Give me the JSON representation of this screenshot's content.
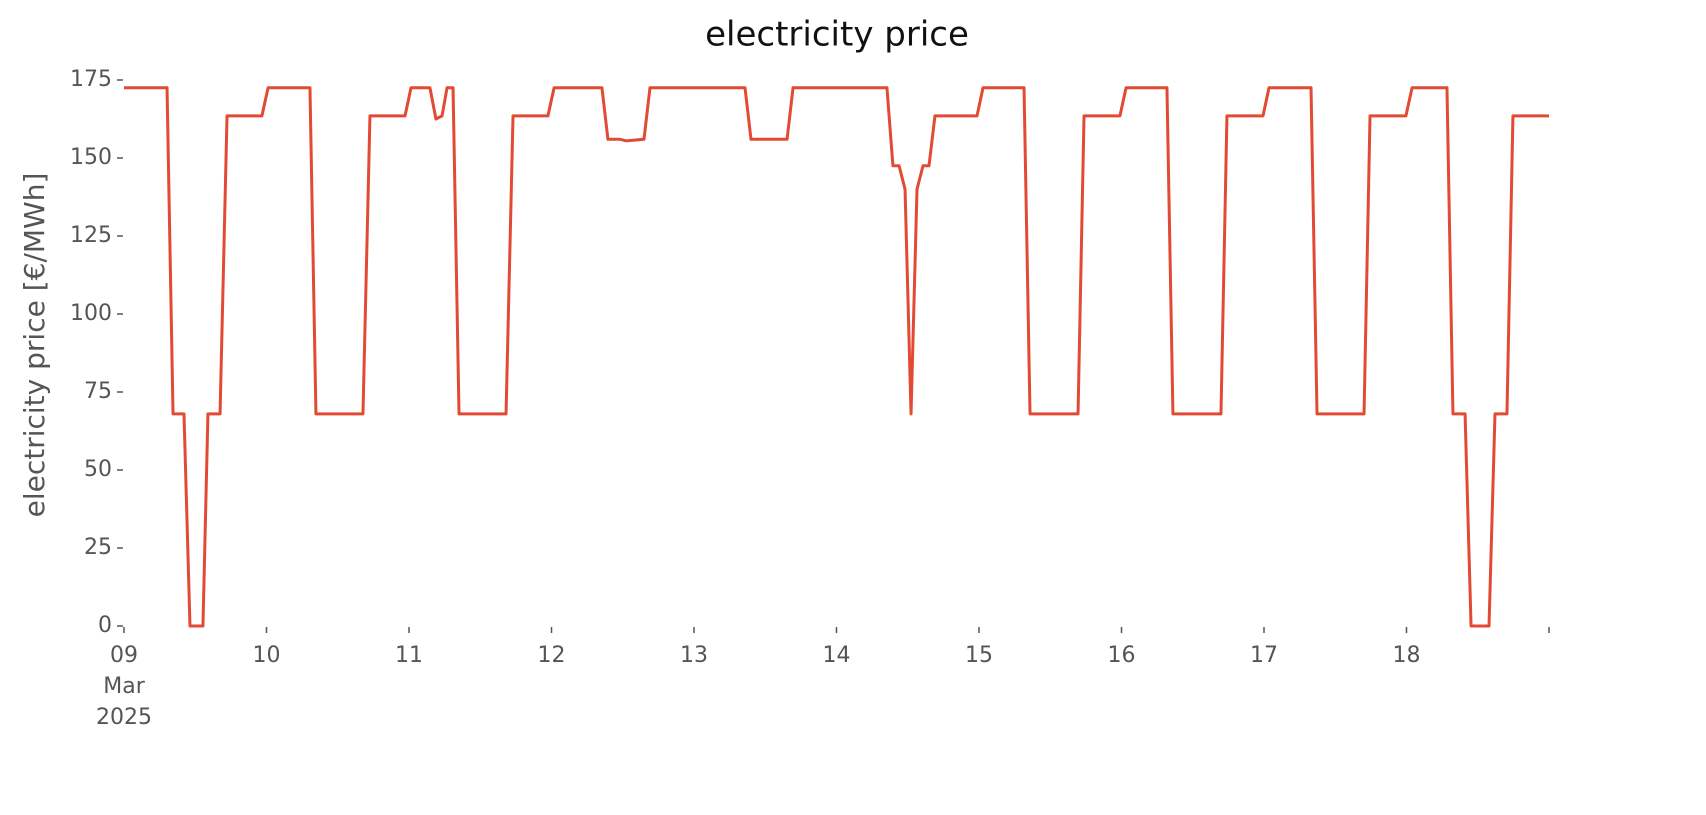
{
  "chart_data": {
    "type": "line",
    "title": "electricity price",
    "ylabel": "electricity price [€/MWh]",
    "x": [
      0,
      0.302,
      0.344,
      0.421,
      0.463,
      0.554,
      0.589,
      0.674,
      0.723,
      0.968,
      1.011,
      1.305,
      1.347,
      1.677,
      1.726,
      1.972,
      2.014,
      2.147,
      2.189,
      2.232,
      2.267,
      2.309,
      2.351,
      2.681,
      2.73,
      2.975,
      3.018,
      3.354,
      3.396,
      3.481,
      3.523,
      3.649,
      3.691,
      4.358,
      4.4,
      4.653,
      4.695,
      5.354,
      5.396,
      5.439,
      5.481,
      5.523,
      5.565,
      5.607,
      5.649,
      5.691,
      5.986,
      6.028,
      6.316,
      6.358,
      6.695,
      6.737,
      6.989,
      7.032,
      7.319,
      7.361,
      7.698,
      7.74,
      7.993,
      8.035,
      8.33,
      8.372,
      8.702,
      8.744,
      8.996,
      9.039,
      9.284,
      9.326,
      9.411,
      9.453,
      9.579,
      9.621,
      9.705,
      9.747,
      10
    ],
    "series": [
      {
        "name": "electricity price",
        "color": "#e24a33",
        "values": [
          172.5,
          172.5,
          68,
          68,
          0,
          0,
          68,
          68,
          163.5,
          163.5,
          172.5,
          172.5,
          68,
          68,
          163.5,
          163.5,
          172.5,
          172.5,
          162.5,
          163.5,
          172.5,
          172.5,
          68,
          68,
          163.5,
          163.5,
          172.5,
          172.5,
          156,
          156,
          155.5,
          156,
          172.5,
          172.5,
          156,
          156,
          172.5,
          172.5,
          147.5,
          147.5,
          140,
          68,
          140,
          147.5,
          147.5,
          163.5,
          163.5,
          172.5,
          172.5,
          68,
          68,
          163.5,
          163.5,
          172.5,
          172.5,
          68,
          68,
          163.5,
          163.5,
          172.5,
          172.5,
          68,
          68,
          163.5,
          163.5,
          172.5,
          172.5,
          68,
          68,
          0,
          0,
          68,
          68,
          163.5,
          163.5
        ]
      }
    ],
    "xlim": [
      0,
      10
    ],
    "ylim": [
      0,
      175
    ],
    "xticks": [
      {
        "value": 0,
        "label": "09 Mar 2025"
      },
      {
        "value": 1,
        "label": "10"
      },
      {
        "value": 2,
        "label": "11"
      },
      {
        "value": 3,
        "label": "12"
      },
      {
        "value": 4,
        "label": "13"
      },
      {
        "value": 5,
        "label": "14"
      },
      {
        "value": 6,
        "label": "15"
      },
      {
        "value": 7,
        "label": "16"
      },
      {
        "value": 8,
        "label": "17"
      },
      {
        "value": 9,
        "label": "18"
      },
      {
        "value": 10,
        "label": null
      }
    ],
    "yticks": [
      0,
      25,
      50,
      75,
      100,
      125,
      150,
      175
    ],
    "grid": false
  }
}
